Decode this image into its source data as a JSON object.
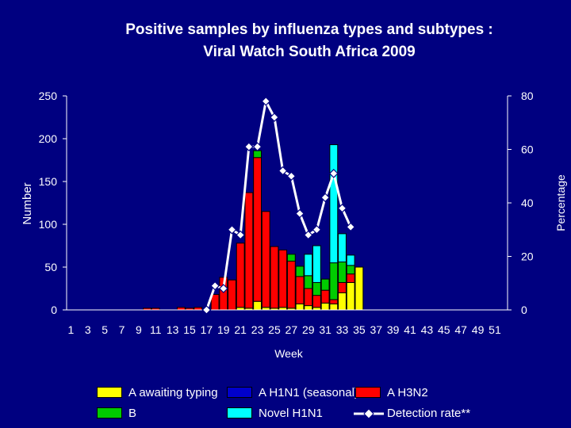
{
  "chart_data": {
    "type": "bar",
    "title": "Positive samples by influenza types and subtypes :\nViral Watch South Africa  2009",
    "xlabel": "Week",
    "ylabel": "Number",
    "y2label": "Percentage",
    "ylim": [
      0,
      250
    ],
    "y2lim": [
      0,
      80
    ],
    "yticks": [
      "0",
      "50",
      "100",
      "150",
      "200",
      "250"
    ],
    "y2ticks": [
      "0",
      "20",
      "40",
      "60",
      "80"
    ],
    "xticks": [
      "1",
      "3",
      "5",
      "7",
      "9",
      "11",
      "13",
      "15",
      "17",
      "19",
      "21",
      "23",
      "25",
      "27",
      "29",
      "31",
      "33",
      "35",
      "37",
      "39",
      "41",
      "43",
      "45",
      "47",
      "49",
      "51"
    ],
    "weeks": [
      1,
      2,
      3,
      4,
      5,
      6,
      7,
      8,
      9,
      10,
      11,
      12,
      13,
      14,
      15,
      16,
      17,
      18,
      19,
      20,
      21,
      22,
      23,
      24,
      25,
      26,
      27,
      28,
      29,
      30,
      31,
      32,
      33,
      34,
      35,
      36,
      37,
      38,
      39,
      40,
      41,
      42,
      43,
      44,
      45,
      46,
      47,
      48,
      49,
      50,
      51,
      52
    ],
    "stacked": true,
    "series": [
      {
        "name": "A awaiting typing",
        "color": "#ffff00",
        "values": [
          0,
          0,
          0,
          0,
          0,
          0,
          0,
          0,
          0,
          0,
          0,
          0,
          0,
          0,
          0,
          0,
          0,
          0,
          0,
          0,
          3,
          2,
          10,
          3,
          2,
          3,
          2,
          7,
          5,
          3,
          8,
          7,
          20,
          32,
          50,
          0,
          0,
          0,
          0,
          0,
          0,
          0,
          0,
          0,
          0,
          0,
          0,
          0,
          0,
          0,
          0,
          0
        ]
      },
      {
        "name": "A H1N1 (seasonal)",
        "color": "#0000cc",
        "values": [
          0,
          0,
          0,
          0,
          0,
          0,
          0,
          0,
          0,
          0,
          0,
          0,
          0,
          0,
          0,
          0,
          0,
          0,
          0,
          0,
          0,
          0,
          0,
          0,
          0,
          0,
          0,
          0,
          0,
          0,
          0,
          0,
          0,
          0,
          0,
          0,
          0,
          0,
          0,
          0,
          0,
          0,
          0,
          0,
          0,
          0,
          0,
          0,
          0,
          0,
          0,
          0
        ]
      },
      {
        "name": "A H3N2",
        "color": "#ff0000",
        "values": [
          0,
          0,
          0,
          0,
          0,
          0,
          0,
          0,
          0,
          2,
          2,
          0,
          0,
          3,
          2,
          3,
          0,
          18,
          38,
          35,
          75,
          135,
          168,
          112,
          72,
          67,
          55,
          32,
          20,
          14,
          15,
          5,
          12,
          10,
          0,
          0,
          0,
          0,
          0,
          0,
          0,
          0,
          0,
          0,
          0,
          0,
          0,
          0,
          0,
          0,
          0,
          0
        ]
      },
      {
        "name": "B",
        "color": "#00cc00",
        "values": [
          0,
          0,
          0,
          0,
          0,
          0,
          0,
          0,
          0,
          0,
          0,
          0,
          0,
          0,
          0,
          0,
          0,
          0,
          0,
          0,
          0,
          0,
          8,
          0,
          0,
          0,
          8,
          12,
          15,
          15,
          13,
          43,
          24,
          10,
          0,
          0,
          0,
          0,
          0,
          0,
          0,
          0,
          0,
          0,
          0,
          0,
          0,
          0,
          0,
          0,
          0,
          0
        ]
      },
      {
        "name": "Novel H1N1",
        "color": "#00ffff",
        "values": [
          0,
          0,
          0,
          0,
          0,
          0,
          0,
          0,
          0,
          0,
          0,
          0,
          0,
          0,
          0,
          0,
          0,
          0,
          0,
          0,
          0,
          0,
          0,
          0,
          0,
          0,
          0,
          0,
          25,
          43,
          0,
          138,
          33,
          12,
          0,
          0,
          0,
          0,
          0,
          0,
          0,
          0,
          0,
          0,
          0,
          0,
          0,
          0,
          0,
          0,
          0,
          0
        ]
      }
    ],
    "line": {
      "name": "Detection rate**",
      "axis": "right",
      "weeks": [
        17,
        18,
        19,
        20,
        21,
        22,
        23,
        24,
        25,
        26,
        27,
        28,
        29,
        30,
        31,
        32,
        33,
        34
      ],
      "values": [
        0,
        9,
        8,
        30,
        28,
        61,
        61,
        78,
        72,
        52,
        50,
        36,
        28,
        30,
        42,
        51,
        38,
        31
      ]
    },
    "legend_position": "bottom"
  }
}
